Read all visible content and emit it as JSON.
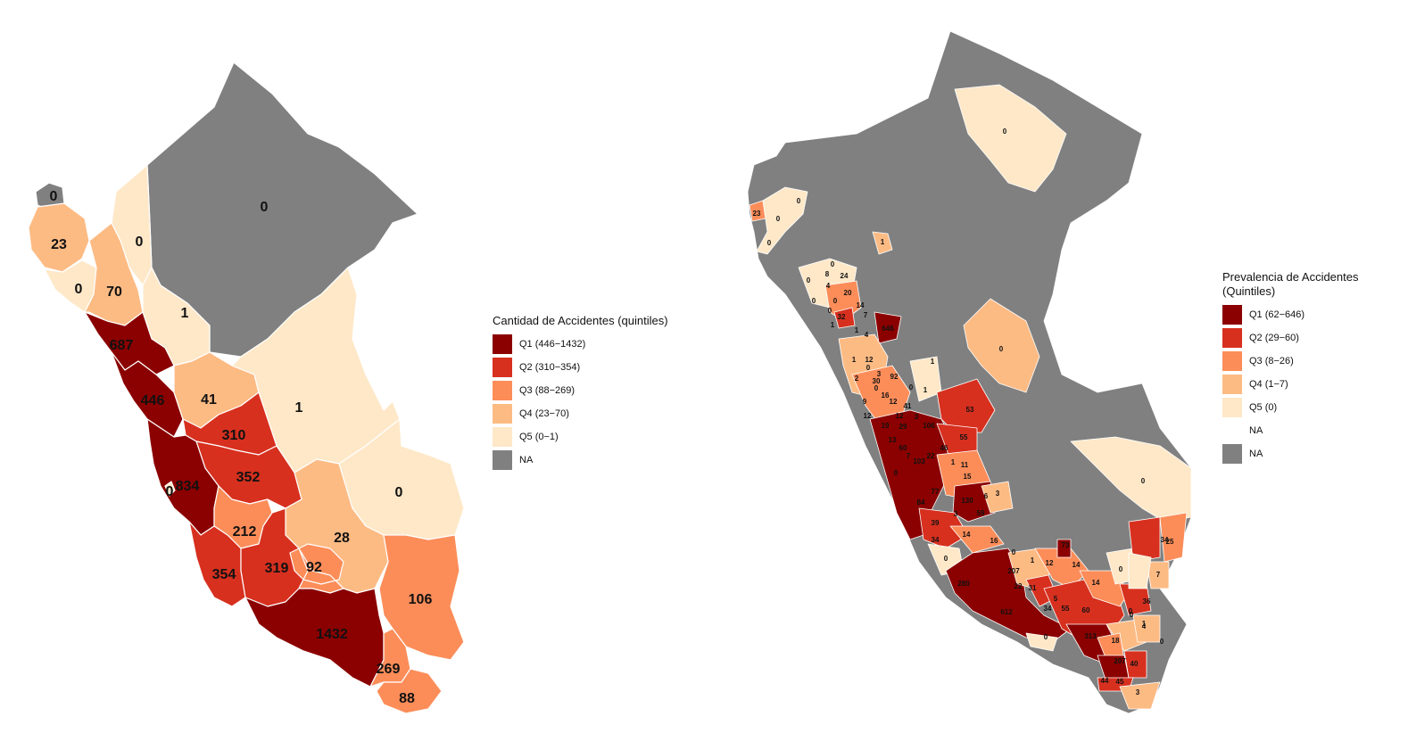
{
  "colors": {
    "Q1": "#8b0000",
    "Q2": "#d7301f",
    "Q3": "#fc8d59",
    "Q4": "#fdbb84",
    "Q5": "#fee8c8",
    "NA": "#808080",
    "NA_white": "#ffffff"
  },
  "left_map": {
    "legend": {
      "title": "Cantidad de Accidentes (quintiles)",
      "items": [
        {
          "key": "Q1",
          "label": "Q1 (446−1432)"
        },
        {
          "key": "Q2",
          "label": "Q2 (310−354)"
        },
        {
          "key": "Q3",
          "label": "Q3 (88−269)"
        },
        {
          "key": "Q4",
          "label": "Q4 (23−70)"
        },
        {
          "key": "Q5",
          "label": "Q5 (0−1)"
        },
        {
          "key": "NA",
          "label": "NA"
        }
      ]
    },
    "regions": [
      {
        "label": "0",
        "cls": "NA"
      },
      {
        "label": "0",
        "cls": "NA"
      },
      {
        "label": "23",
        "cls": "Q4"
      },
      {
        "label": "0",
        "cls": "Q5"
      },
      {
        "label": "0",
        "cls": "Q5"
      },
      {
        "label": "70",
        "cls": "Q4"
      },
      {
        "label": "1",
        "cls": "Q5"
      },
      {
        "label": "687",
        "cls": "Q1"
      },
      {
        "label": "446",
        "cls": "Q1"
      },
      {
        "label": "41",
        "cls": "Q4"
      },
      {
        "label": "1",
        "cls": "Q5"
      },
      {
        "label": "310",
        "cls": "Q2"
      },
      {
        "label": "352",
        "cls": "Q2"
      },
      {
        "label": "834",
        "cls": "Q1"
      },
      {
        "label": "0",
        "cls": "Q5"
      },
      {
        "label": "0",
        "cls": "Q5"
      },
      {
        "label": "212",
        "cls": "Q3"
      },
      {
        "label": "28",
        "cls": "Q4"
      },
      {
        "label": "354",
        "cls": "Q2"
      },
      {
        "label": "319",
        "cls": "Q2"
      },
      {
        "label": "92",
        "cls": "Q3"
      },
      {
        "label": "106",
        "cls": "Q3"
      },
      {
        "label": "1432",
        "cls": "Q1"
      },
      {
        "label": "269",
        "cls": "Q3"
      },
      {
        "label": "88",
        "cls": "Q3"
      }
    ]
  },
  "right_map": {
    "legend": {
      "title": "Prevalencia de Accidentes\n(Quintiles)",
      "items": [
        {
          "key": "Q1",
          "label": "Q1 (62−646)"
        },
        {
          "key": "Q2",
          "label": "Q2 (29−60)"
        },
        {
          "key": "Q3",
          "label": "Q3 (8−26)"
        },
        {
          "key": "Q4",
          "label": "Q4 (1−7)"
        },
        {
          "key": "Q5",
          "label": "Q5 (0)"
        },
        {
          "key": "NA_white",
          "label": "NA"
        },
        {
          "key": "NA",
          "label": "NA"
        }
      ]
    },
    "labels": [
      {
        "text": "0",
        "cls": "Q5"
      },
      {
        "text": "23",
        "cls": "Q3"
      },
      {
        "text": "0",
        "cls": "Q5"
      },
      {
        "text": "0",
        "cls": "Q5"
      },
      {
        "text": "0",
        "cls": "Q5"
      },
      {
        "text": "1",
        "cls": "Q4"
      },
      {
        "text": "0",
        "cls": "Q5"
      },
      {
        "text": "8",
        "cls": "Q3"
      },
      {
        "text": "24",
        "cls": "Q3"
      },
      {
        "text": "0",
        "cls": "Q5"
      },
      {
        "text": "4",
        "cls": "Q4"
      },
      {
        "text": "20",
        "cls": "Q3"
      },
      {
        "text": "0",
        "cls": "Q5"
      },
      {
        "text": "0",
        "cls": "Q5"
      },
      {
        "text": "0",
        "cls": "Q5"
      },
      {
        "text": "32",
        "cls": "Q2"
      },
      {
        "text": "14",
        "cls": "Q3"
      },
      {
        "text": "1",
        "cls": "Q4"
      },
      {
        "text": "7",
        "cls": "Q4"
      },
      {
        "text": "646",
        "cls": "Q1"
      },
      {
        "text": "1",
        "cls": "Q4"
      },
      {
        "text": "4",
        "cls": "Q4"
      },
      {
        "text": "1",
        "cls": "Q4"
      },
      {
        "text": "0",
        "cls": "Q5"
      },
      {
        "text": "1",
        "cls": "Q4"
      },
      {
        "text": "12",
        "cls": "Q3"
      },
      {
        "text": "0",
        "cls": "Q5"
      },
      {
        "text": "2",
        "cls": "Q4"
      },
      {
        "text": "3",
        "cls": "Q4"
      },
      {
        "text": "30",
        "cls": "Q2"
      },
      {
        "text": "92",
        "cls": "Q1"
      },
      {
        "text": "0",
        "cls": "Q5"
      },
      {
        "text": "0",
        "cls": "Q5"
      },
      {
        "text": "9",
        "cls": "Q3"
      },
      {
        "text": "16",
        "cls": "Q3"
      },
      {
        "text": "12",
        "cls": "Q3"
      },
      {
        "text": "41",
        "cls": "Q2"
      },
      {
        "text": "53",
        "cls": "Q2"
      },
      {
        "text": "1",
        "cls": "Q4"
      },
      {
        "text": "12",
        "cls": "Q3"
      },
      {
        "text": "12",
        "cls": "Q3"
      },
      {
        "text": "19",
        "cls": "Q3"
      },
      {
        "text": "29",
        "cls": "Q2"
      },
      {
        "text": "3",
        "cls": "Q4"
      },
      {
        "text": "106",
        "cls": "Q1"
      },
      {
        "text": "55",
        "cls": "Q2"
      },
      {
        "text": "13",
        "cls": "Q3"
      },
      {
        "text": "60",
        "cls": "Q2"
      },
      {
        "text": "46",
        "cls": "Q2"
      },
      {
        "text": "7",
        "cls": "Q4"
      },
      {
        "text": "22",
        "cls": "Q3"
      },
      {
        "text": "1",
        "cls": "Q4"
      },
      {
        "text": "11",
        "cls": "Q3"
      },
      {
        "text": "103",
        "cls": "Q1"
      },
      {
        "text": "15",
        "cls": "Q3"
      },
      {
        "text": "0",
        "cls": "Q5"
      },
      {
        "text": "77",
        "cls": "Q1"
      },
      {
        "text": "6",
        "cls": "Q4"
      },
      {
        "text": "3",
        "cls": "Q4"
      },
      {
        "text": "130",
        "cls": "Q1"
      },
      {
        "text": "84",
        "cls": "Q1"
      },
      {
        "text": "39",
        "cls": "Q2"
      },
      {
        "text": "3",
        "cls": "Q4"
      },
      {
        "text": "59",
        "cls": "Q2"
      },
      {
        "text": "34",
        "cls": "Q2"
      },
      {
        "text": "14",
        "cls": "Q3"
      },
      {
        "text": "16",
        "cls": "Q3"
      },
      {
        "text": "0",
        "cls": "Q5"
      },
      {
        "text": "0",
        "cls": "Q5"
      },
      {
        "text": "1",
        "cls": "Q4"
      },
      {
        "text": "12",
        "cls": "Q3"
      },
      {
        "text": "73",
        "cls": "Q1"
      },
      {
        "text": "14",
        "cls": "Q3"
      },
      {
        "text": "207",
        "cls": "Q1"
      },
      {
        "text": "280",
        "cls": "Q1"
      },
      {
        "text": "22",
        "cls": "Q3"
      },
      {
        "text": "31",
        "cls": "Q2"
      },
      {
        "text": "5",
        "cls": "Q4"
      },
      {
        "text": "14",
        "cls": "Q3"
      },
      {
        "text": "0",
        "cls": "Q5"
      },
      {
        "text": "36",
        "cls": "Q2"
      },
      {
        "text": "612",
        "cls": "Q1"
      },
      {
        "text": "34",
        "cls": "Q2"
      },
      {
        "text": "55",
        "cls": "Q2"
      },
      {
        "text": "60",
        "cls": "Q2"
      },
      {
        "text": "0",
        "cls": "Q5"
      },
      {
        "text": "313",
        "cls": "Q1"
      },
      {
        "text": "4",
        "cls": "Q4"
      },
      {
        "text": "0",
        "cls": "Q5"
      },
      {
        "text": "18",
        "cls": "Q3"
      },
      {
        "text": "207",
        "cls": "Q1"
      },
      {
        "text": "40",
        "cls": "Q2"
      },
      {
        "text": "44",
        "cls": "Q2"
      },
      {
        "text": "45",
        "cls": "Q2"
      },
      {
        "text": "3",
        "cls": "Q4"
      },
      {
        "text": "0",
        "cls": "Q5"
      },
      {
        "text": "34",
        "cls": "Q2"
      },
      {
        "text": "25",
        "cls": "Q3"
      },
      {
        "text": "7",
        "cls": "Q4"
      },
      {
        "text": "0",
        "cls": "Q5"
      },
      {
        "text": "1",
        "cls": "Q4"
      },
      {
        "text": "0",
        "cls": "Q5"
      }
    ]
  }
}
